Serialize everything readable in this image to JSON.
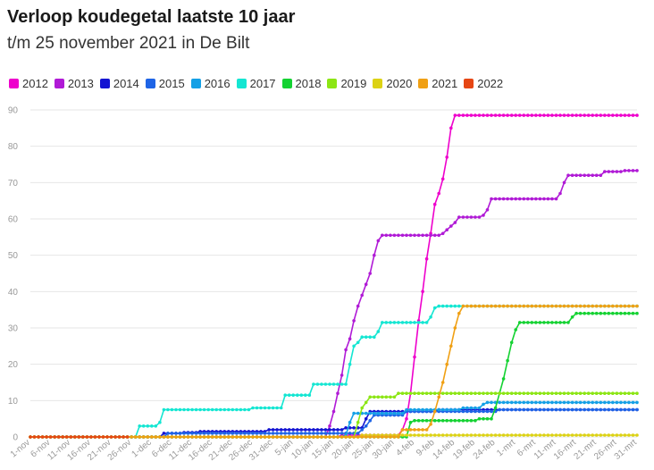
{
  "title": "Verloop koudegetal laatste 10 jaar",
  "subtitle": "t/m 25 november 2021 in De Bilt",
  "chart_data": {
    "type": "line",
    "ylim": [
      0,
      90
    ],
    "yticks": [
      0,
      10,
      20,
      30,
      40,
      50,
      60,
      70,
      80,
      90
    ],
    "xlim": [
      0,
      150
    ],
    "xticks": [
      {
        "day": 0,
        "label": "1-nov"
      },
      {
        "day": 5,
        "label": "6-nov"
      },
      {
        "day": 10,
        "label": "11-nov"
      },
      {
        "day": 15,
        "label": "16-nov"
      },
      {
        "day": 20,
        "label": "21-nov"
      },
      {
        "day": 25,
        "label": "26-nov"
      },
      {
        "day": 30,
        "label": "1-dec"
      },
      {
        "day": 35,
        "label": "6-dec"
      },
      {
        "day": 40,
        "label": "11-dec"
      },
      {
        "day": 45,
        "label": "16-dec"
      },
      {
        "day": 50,
        "label": "21-dec"
      },
      {
        "day": 55,
        "label": "26-dec"
      },
      {
        "day": 60,
        "label": "31-dec"
      },
      {
        "day": 65,
        "label": "5-jan"
      },
      {
        "day": 70,
        "label": "10-jan"
      },
      {
        "day": 75,
        "label": "15-jan"
      },
      {
        "day": 80,
        "label": "20-jan"
      },
      {
        "day": 85,
        "label": "25-jan"
      },
      {
        "day": 90,
        "label": "30-jan"
      },
      {
        "day": 95,
        "label": "4-feb"
      },
      {
        "day": 100,
        "label": "9-feb"
      },
      {
        "day": 105,
        "label": "14-feb"
      },
      {
        "day": 110,
        "label": "19-feb"
      },
      {
        "day": 115,
        "label": "24-feb"
      },
      {
        "day": 120,
        "label": "1-mrt"
      },
      {
        "day": 125,
        "label": "6-mrt"
      },
      {
        "day": 130,
        "label": "11-mrt"
      },
      {
        "day": 135,
        "label": "16-mrt"
      },
      {
        "day": 140,
        "label": "21-mrt"
      },
      {
        "day": 145,
        "label": "26-mrt"
      },
      {
        "day": 150,
        "label": "31-mrt"
      }
    ],
    "grid": true,
    "legend": "top-left",
    "series": [
      {
        "name": "2012",
        "color": "#ee00cc",
        "points": [
          [
            0,
            0
          ],
          [
            76,
            0
          ],
          [
            77,
            0.5
          ],
          [
            91,
            0.5
          ],
          [
            92,
            2
          ],
          [
            93,
            5
          ],
          [
            94,
            12
          ],
          [
            95,
            22
          ],
          [
            96,
            32
          ],
          [
            97,
            40
          ],
          [
            98,
            49
          ],
          [
            99,
            56
          ],
          [
            100,
            64
          ],
          [
            101,
            67
          ],
          [
            102,
            71
          ],
          [
            103,
            77
          ],
          [
            104,
            85
          ],
          [
            105,
            88.5
          ],
          [
            150,
            88.5
          ]
        ]
      },
      {
        "name": "2013",
        "color": "#b01ad6",
        "points": [
          [
            0,
            0
          ],
          [
            73,
            0
          ],
          [
            74,
            3
          ],
          [
            75,
            7
          ],
          [
            76,
            12
          ],
          [
            77,
            17
          ],
          [
            78,
            24
          ],
          [
            79,
            27
          ],
          [
            80,
            32
          ],
          [
            81,
            36
          ],
          [
            82,
            39
          ],
          [
            83,
            42
          ],
          [
            84,
            45
          ],
          [
            85,
            50
          ],
          [
            86,
            54
          ],
          [
            87,
            55.5
          ],
          [
            101,
            55.5
          ],
          [
            102,
            56
          ],
          [
            103,
            57
          ],
          [
            104,
            58
          ],
          [
            105,
            59
          ],
          [
            106,
            60.5
          ],
          [
            111,
            60.5
          ],
          [
            112,
            61
          ],
          [
            113,
            62.5
          ],
          [
            114,
            65.5
          ],
          [
            130,
            65.5
          ],
          [
            131,
            67
          ],
          [
            132,
            70
          ],
          [
            133,
            72
          ],
          [
            141,
            72
          ],
          [
            142,
            73
          ],
          [
            146,
            73
          ],
          [
            147,
            73.3
          ],
          [
            150,
            73.3
          ]
        ]
      },
      {
        "name": "2014",
        "color": "#1414d2",
        "points": [
          [
            0,
            0
          ],
          [
            32,
            0
          ],
          [
            33,
            1
          ],
          [
            37,
            1
          ],
          [
            38,
            1.2
          ],
          [
            41,
            1.2
          ],
          [
            42,
            1.5
          ],
          [
            58,
            1.5
          ],
          [
            59,
            2
          ],
          [
            77,
            2
          ],
          [
            78,
            2.5
          ],
          [
            82,
            2.5
          ],
          [
            83,
            5
          ],
          [
            84,
            7
          ],
          [
            100,
            7
          ],
          [
            101,
            7.5
          ],
          [
            150,
            7.5
          ]
        ]
      },
      {
        "name": "2015",
        "color": "#1e64e6",
        "points": [
          [
            0,
            0
          ],
          [
            33,
            0
          ],
          [
            34,
            1
          ],
          [
            81,
            1
          ],
          [
            82,
            2
          ],
          [
            83,
            3
          ],
          [
            84,
            4.5
          ],
          [
            85,
            6
          ],
          [
            92,
            6
          ],
          [
            93,
            7
          ],
          [
            115,
            7
          ],
          [
            116,
            7.5
          ],
          [
            150,
            7.5
          ]
        ]
      },
      {
        "name": "2016",
        "color": "#14a0e6",
        "points": [
          [
            0,
            0
          ],
          [
            77,
            0
          ],
          [
            78,
            0.5
          ],
          [
            79,
            4
          ],
          [
            80,
            6.5
          ],
          [
            92,
            6.5
          ],
          [
            93,
            7.5
          ],
          [
            106,
            7.5
          ],
          [
            107,
            8
          ],
          [
            111,
            8
          ],
          [
            112,
            9
          ],
          [
            113,
            9.5
          ],
          [
            150,
            9.5
          ]
        ]
      },
      {
        "name": "2017",
        "color": "#14e6d2",
        "points": [
          [
            0,
            0
          ],
          [
            26,
            0
          ],
          [
            27,
            3
          ],
          [
            31,
            3
          ],
          [
            32,
            4
          ],
          [
            33,
            7.5
          ],
          [
            54,
            7.5
          ],
          [
            55,
            8
          ],
          [
            62,
            8
          ],
          [
            63,
            11.5
          ],
          [
            69,
            11.5
          ],
          [
            70,
            14.5
          ],
          [
            78,
            14.5
          ],
          [
            79,
            20
          ],
          [
            80,
            25
          ],
          [
            81,
            26
          ],
          [
            82,
            27.5
          ],
          [
            85,
            27.5
          ],
          [
            86,
            29
          ],
          [
            87,
            31.5
          ],
          [
            98,
            31.5
          ],
          [
            99,
            33
          ],
          [
            100,
            35.5
          ],
          [
            101,
            36
          ],
          [
            150,
            36
          ]
        ]
      },
      {
        "name": "2018",
        "color": "#14d232",
        "points": [
          [
            0,
            0
          ],
          [
            93,
            0
          ],
          [
            94,
            4
          ],
          [
            95,
            4.5
          ],
          [
            110,
            4.5
          ],
          [
            111,
            5
          ],
          [
            114,
            5
          ],
          [
            115,
            8
          ],
          [
            116,
            12
          ],
          [
            117,
            16
          ],
          [
            118,
            21
          ],
          [
            119,
            26
          ],
          [
            120,
            29.5
          ],
          [
            121,
            31.5
          ],
          [
            133,
            31.5
          ],
          [
            134,
            33
          ],
          [
            135,
            34
          ],
          [
            150,
            34
          ]
        ]
      },
      {
        "name": "2019",
        "color": "#8ce614",
        "points": [
          [
            0,
            0
          ],
          [
            80,
            0
          ],
          [
            81,
            4
          ],
          [
            82,
            8
          ],
          [
            83,
            9.5
          ],
          [
            84,
            11
          ],
          [
            90,
            11
          ],
          [
            91,
            12
          ],
          [
            150,
            12
          ]
        ]
      },
      {
        "name": "2020",
        "color": "#dcd214",
        "points": [
          [
            0,
            0
          ],
          [
            81,
            0
          ],
          [
            82,
            0.5
          ],
          [
            150,
            0.5
          ]
        ]
      },
      {
        "name": "2021",
        "color": "#f0a014",
        "points": [
          [
            0,
            0
          ],
          [
            91,
            0
          ],
          [
            92,
            2
          ],
          [
            98,
            2
          ],
          [
            99,
            3.5
          ],
          [
            100,
            7
          ],
          [
            101,
            11
          ],
          [
            102,
            15
          ],
          [
            103,
            20
          ],
          [
            104,
            25
          ],
          [
            105,
            30
          ],
          [
            106,
            34
          ],
          [
            107,
            36
          ],
          [
            150,
            36
          ]
        ]
      },
      {
        "name": "2022",
        "color": "#e64614",
        "points": [
          [
            0,
            0
          ],
          [
            24,
            0
          ]
        ]
      }
    ]
  }
}
